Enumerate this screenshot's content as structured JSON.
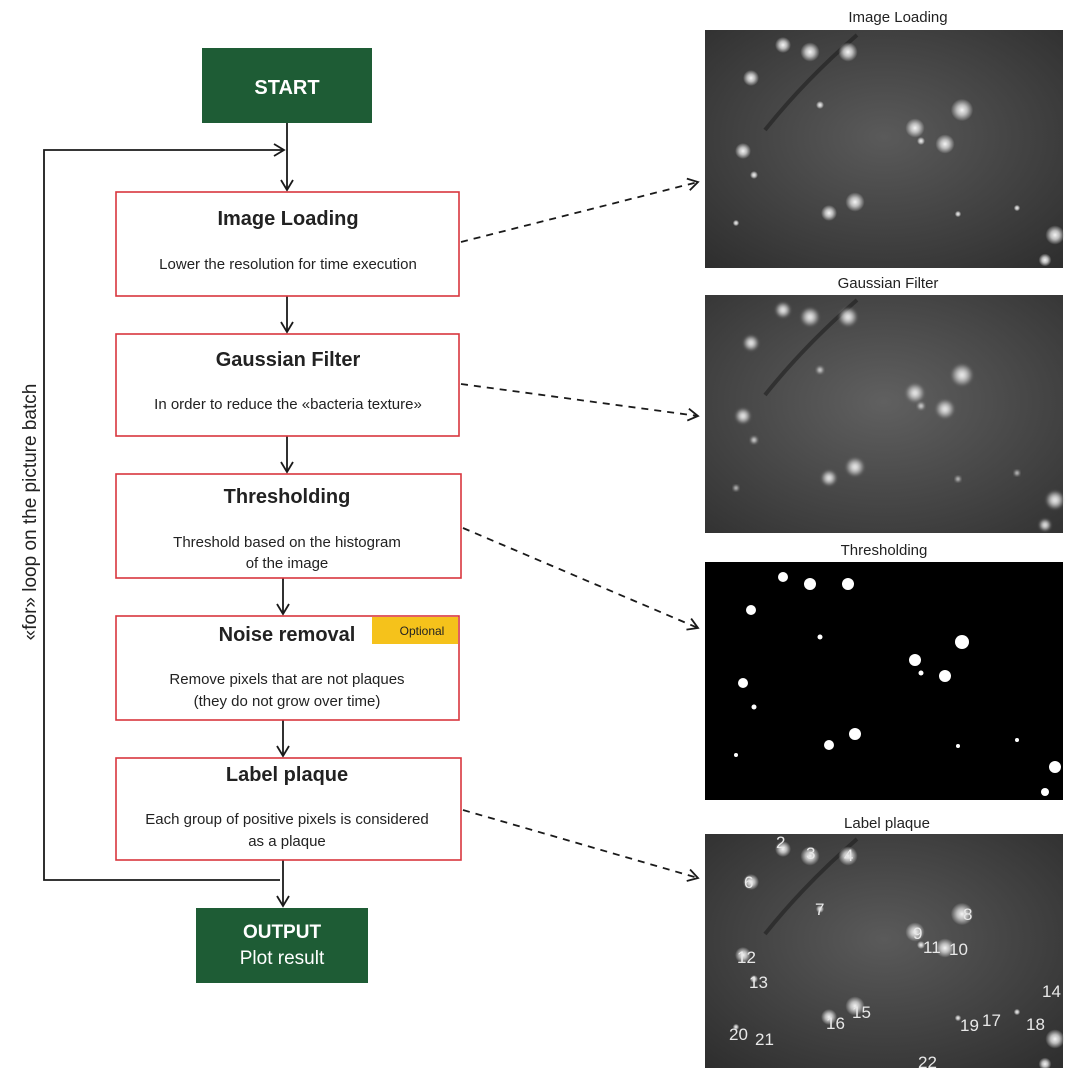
{
  "flowchart": {
    "start": "START",
    "steps": [
      {
        "title": "Image Loading",
        "desc": [
          "Lower the resolution for time execution"
        ]
      },
      {
        "title": "Gaussian Filter",
        "desc": [
          "In order to reduce the «bacteria texture»"
        ]
      },
      {
        "title": "Thresholding",
        "desc": [
          "Threshold based on the histogram",
          "of the image"
        ]
      },
      {
        "title": "Noise removal",
        "desc": [
          "Remove pixels that are not plaques",
          "(they do not grow over time)"
        ],
        "badge": "Optional"
      },
      {
        "title": "Label plaque",
        "desc": [
          "Each group of positive pixels is considered",
          "as a plaque"
        ]
      }
    ],
    "output": {
      "title": "OUTPUT",
      "subtitle": "Plot result"
    },
    "loop_label": "«for» loop on the picture batch"
  },
  "panels": [
    {
      "title": "Image Loading",
      "style": "gray"
    },
    {
      "title": "Gaussian Filter",
      "style": "gray-smooth"
    },
    {
      "title": "Thresholding",
      "style": "binary"
    },
    {
      "title": "Label plaque",
      "style": "labeled"
    }
  ],
  "plaque_labels": [
    "2",
    "3",
    "4",
    "6",
    "7",
    "8",
    "9",
    "11",
    "10",
    "12",
    "13",
    "14",
    "15",
    "16",
    "19",
    "17",
    "18",
    "20",
    "21",
    "22"
  ],
  "colors": {
    "terminal_fill": "#1e5c35",
    "step_border": "#d9363e",
    "badge_fill": "#f5c21b",
    "arrow": "#1a1a1a"
  }
}
